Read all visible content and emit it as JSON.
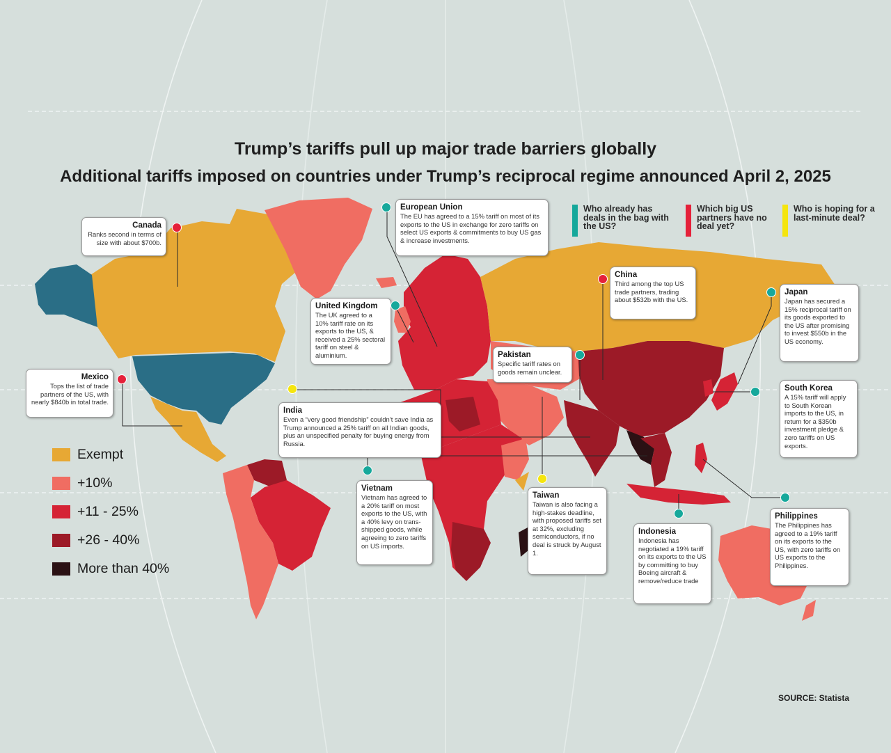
{
  "title": "Trump’s tariffs pull up major trade barriers globally",
  "subtitle": "Additional tariffs imposed on countries under Trump’s reciprocal regime announced April 2, 2025",
  "source": "SOURCE: Statista",
  "colors": {
    "exempt": "#e7a834",
    "ten": "#f06d62",
    "eleven_25": "#d52335",
    "twentysix_40": "#9c1a27",
    "over40": "#2b1114",
    "deal": "#2a6e86",
    "ocean": "#d6dfdc",
    "teal_marker": "#16a89b",
    "red_marker": "#e5213a",
    "yellow_marker": "#f5e50e"
  },
  "legend": [
    {
      "label": "Exempt",
      "color": "#e7a834"
    },
    {
      "label": "+10%",
      "color": "#f06d62"
    },
    {
      "label": "+11 - 25%",
      "color": "#d52335"
    },
    {
      "label": "+26 - 40%",
      "color": "#9c1a27"
    },
    {
      "label": "More than 40%",
      "color": "#2b1114"
    }
  ],
  "questions": [
    {
      "text": "Who already has deals in the bag with the US?",
      "color": "#16a89b"
    },
    {
      "text": "Which big US partners have no deal yet?",
      "color": "#e5213a"
    },
    {
      "text": "Who is hoping for a last-minute deal?",
      "color": "#f5e50e"
    }
  ],
  "callouts": {
    "canada": {
      "title": "Canada",
      "body": "Ranks second in terms of size with about $700b.",
      "status": "red-marker"
    },
    "mexico": {
      "title": "Mexico",
      "body": "Tops the list of trade partners of the US, with nearly $840b in total trade.",
      "status": "red-marker"
    },
    "eu": {
      "title": "European Union",
      "body": "The EU has agreed to a 15% tariff on most of its exports to the US in exchange for zero tariffs on select US exports & commitments to buy US gas & increase investments.",
      "status": "teal-marker"
    },
    "uk": {
      "title": "United Kingdom",
      "body": "The UK agreed to a 10% tariff rate on its exports to the US, & received a 25% sectoral tariff on steel & aluminium.",
      "status": "teal-marker"
    },
    "china": {
      "title": "China",
      "body": "Third among the top US trade partners, trading about $532b with the US.",
      "status": "red-marker"
    },
    "japan": {
      "title": "Japan",
      "body": "Japan has secured a 15% reciprocal tariff on its goods exported to the US after promising to invest $550b in the US economy.",
      "status": "teal-marker"
    },
    "pakistan": {
      "title": "Pakistan",
      "body": "Specific tariff rates on goods remain unclear.",
      "status": "teal-marker"
    },
    "south_korea": {
      "title": "South Korea",
      "body": "A 15% tariff will apply to South Korean imports to the US, in return for a $350b investment pledge & zero tariffs on US exports.",
      "status": "teal-marker"
    },
    "india": {
      "title": "India",
      "body": "Even a “very good friendship” couldn’t save India as Trump announced a 25% tariff on all Indian goods, plus an unspecified penalty for buying energy from Russia.",
      "status": "yellow-marker"
    },
    "vietnam": {
      "title": "Vietnam",
      "body": "Vietnam has agreed to a 20% tariff on most exports to the US, with a 40% levy on trans-shipped goods, while agreeing to zero tariffs on US imports.",
      "status": "teal-marker"
    },
    "taiwan": {
      "title": "Taiwan",
      "body": "Taiwan is also facing a high-stakes deadline, with proposed tariffs set at 32%, excluding semiconductors, if no deal is struck by August 1.",
      "status": "yellow-marker"
    },
    "indonesia": {
      "title": "Indonesia",
      "body": "Indonesia has negotiated a 19% tariff on its exports to the US by committing to buy Boeing aircraft & remove/reduce trade",
      "status": "teal-marker"
    },
    "philippines": {
      "title": "Philippines",
      "body": "The Philippines has agreed to a 19% tariff on its exports to the US, with zero tariffs on US exports to the Philippines.",
      "status": "teal-marker"
    }
  }
}
